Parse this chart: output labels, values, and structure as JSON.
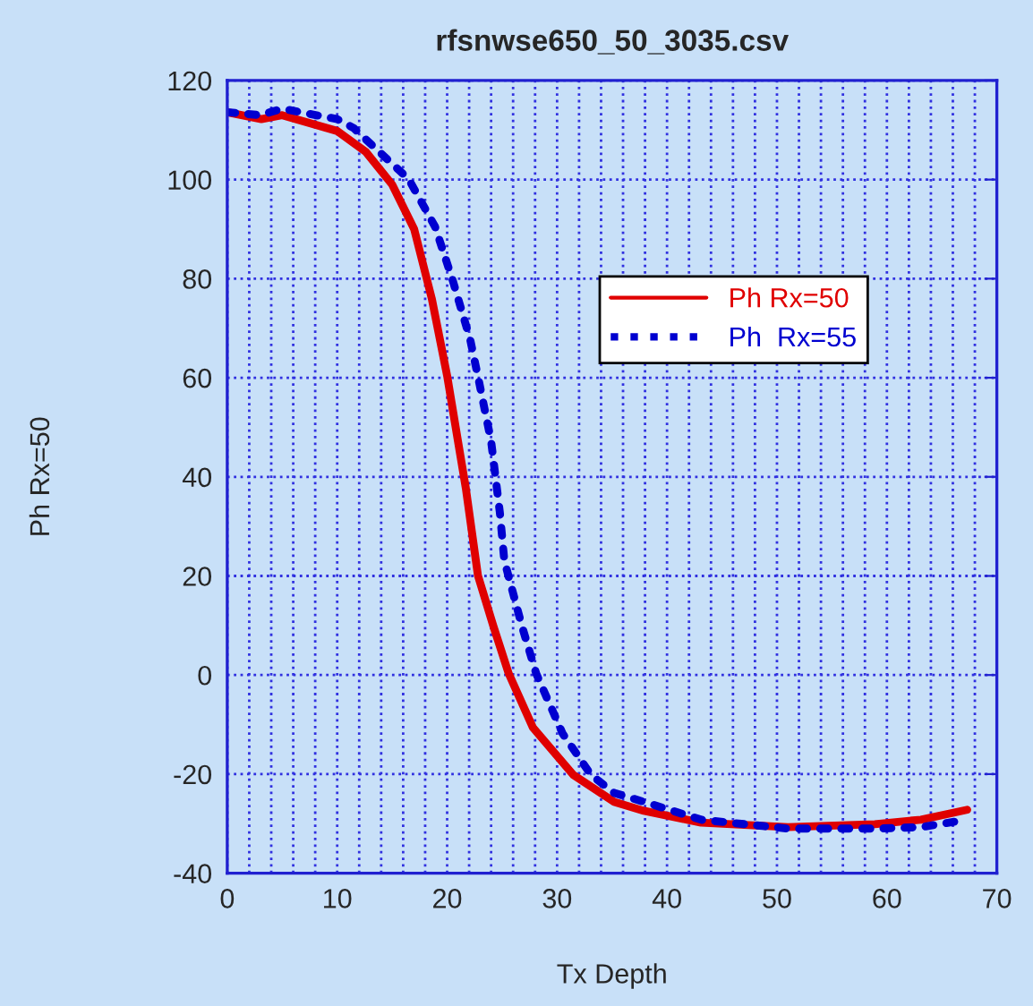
{
  "chart_data": {
    "type": "line",
    "title": "rfsnwse650_50_3035.csv",
    "xlabel": "Tx Depth",
    "ylabel": "Ph Rx=50",
    "xlim": [
      0,
      70
    ],
    "ylim": [
      -40,
      120
    ],
    "xticks": [
      0,
      {
        "value": 2,
        "label": null
      },
      {
        "value": 4,
        "label": null
      },
      {
        "value": 6,
        "label": null
      },
      {
        "value": 8,
        "label": null
      },
      10,
      {
        "value": 12,
        "label": null
      },
      {
        "value": 14,
        "label": null
      },
      {
        "value": 16,
        "label": null
      },
      {
        "value": 18,
        "label": null
      },
      20,
      {
        "value": 22,
        "label": null
      },
      {
        "value": 24,
        "label": null
      },
      {
        "value": 26,
        "label": null
      },
      {
        "value": 28,
        "label": null
      },
      30,
      {
        "value": 32,
        "label": null
      },
      {
        "value": 34,
        "label": null
      },
      {
        "value": 36,
        "label": null
      },
      {
        "value": 38,
        "label": null
      },
      40,
      {
        "value": 42,
        "label": null
      },
      {
        "value": 44,
        "label": null
      },
      {
        "value": 46,
        "label": null
      },
      {
        "value": 48,
        "label": null
      },
      50,
      {
        "value": 52,
        "label": null
      },
      {
        "value": 54,
        "label": null
      },
      {
        "value": 56,
        "label": null
      },
      {
        "value": 58,
        "label": null
      },
      60,
      {
        "value": 62,
        "label": null
      },
      {
        "value": 64,
        "label": null
      },
      {
        "value": 66,
        "label": null
      },
      {
        "value": 68,
        "label": null
      },
      70
    ],
    "yticks": [
      -40,
      -20,
      0,
      20,
      40,
      60,
      80,
      100,
      120
    ],
    "grid": true,
    "legend": "top right",
    "series": [
      {
        "name": "Ph Rx=50",
        "color": "#e00000",
        "line_style": "solid",
        "x": [
          0,
          3.1,
          5,
          10,
          12.6,
          15,
          17,
          18.6,
          20,
          21,
          21.7,
          22.8,
          24.2,
          25.6,
          27.8,
          31.5,
          35.2,
          37.9,
          43.1,
          51,
          58.9,
          63.1,
          67.3
        ],
        "values": [
          113.6,
          112.2,
          113,
          109.8,
          105.6,
          99,
          90,
          76,
          60.4,
          47,
          37.7,
          20.1,
          9.9,
          0.3,
          -10.6,
          -20.2,
          -25.6,
          -27.4,
          -29.8,
          -30.7,
          -30.1,
          -29.2,
          -27.2
        ]
      },
      {
        "name": "Ph  Rx=55",
        "color": "#0000d0",
        "line_style": "dotted",
        "x": [
          0,
          3,
          5,
          10,
          11.5,
          16.5,
          18.9,
          20.5,
          22.1,
          22.9,
          24,
          24.8,
          25.2,
          26.8,
          28.1,
          30.5,
          33.1,
          35.2,
          37.9,
          43.1,
          51,
          58.9,
          63.1,
          67.3
        ],
        "values": [
          113.6,
          113,
          114.3,
          112.2,
          110.4,
          100.1,
          90.5,
          79.7,
          67.7,
          59.2,
          47.2,
          32.7,
          23.1,
          9.9,
          0.3,
          -11.8,
          -20.2,
          -23.8,
          -25.6,
          -29.2,
          -31,
          -31,
          -30.7,
          -29.2
        ]
      }
    ]
  }
}
